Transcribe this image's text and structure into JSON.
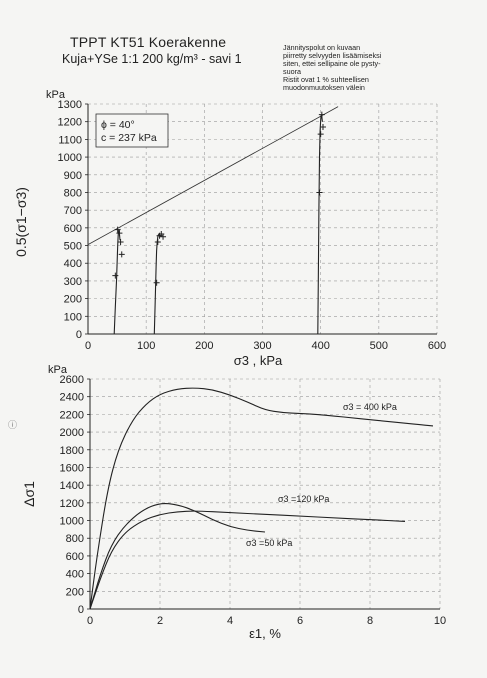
{
  "header": {
    "title": "TPPT KT51 Koerakenne",
    "subtitle": "Kuja+YSe 1:1 200 kg/m³ - savi 1",
    "note_lines": [
      "Jännityspolut on kuvaan",
      "piirretty selvyyden lisäämiseksi",
      "siten, ettei sellipaine ole pysty-",
      "suora",
      "Ristit ovat 1 % suhteellisen",
      "muodonmuutoksen välein"
    ]
  },
  "side_mark": "ⓘ",
  "chart_data": [
    {
      "type": "line",
      "unit_label": "kPa",
      "ylabel": "0.5(σ1−σ3)",
      "xlabel": "σ3 , kPa",
      "xlim": [
        0,
        600
      ],
      "ylim": [
        0,
        1300
      ],
      "xticks": [
        0,
        100,
        200,
        300,
        400,
        500,
        600
      ],
      "yticks": [
        0,
        100,
        200,
        300,
        400,
        500,
        600,
        700,
        800,
        900,
        1000,
        1100,
        1200,
        1300
      ],
      "grid": "dashed",
      "legend_box": [
        "ϕ = 40°",
        "c = 237 kPa"
      ],
      "failure_envelope": {
        "x": [
          0,
          430
        ],
        "y": [
          505,
          1285
        ]
      },
      "series": [
        {
          "x": [
            45,
            47,
            49,
            50,
            51,
            52,
            53,
            54,
            55
          ],
          "y": [
            0,
            150,
            300,
            400,
            500,
            560,
            590,
            570,
            530
          ]
        },
        {
          "x": [
            114,
            115,
            116,
            117,
            118,
            119,
            120,
            121,
            122,
            124,
            126
          ],
          "y": [
            0,
            120,
            250,
            380,
            470,
            520,
            548,
            560,
            560,
            558,
            552
          ]
        },
        {
          "x": [
            395,
            396,
            397,
            398,
            399,
            400,
            401,
            402,
            403
          ],
          "y": [
            0,
            300,
            700,
            1000,
            1150,
            1210,
            1240,
            1230,
            1200
          ]
        }
      ],
      "markers": [
        {
          "x": 47,
          "y": 330
        },
        {
          "x": 51,
          "y": 590
        },
        {
          "x": 54,
          "y": 570
        },
        {
          "x": 56,
          "y": 520
        },
        {
          "x": 58,
          "y": 450
        },
        {
          "x": 118,
          "y": 290
        },
        {
          "x": 120,
          "y": 520
        },
        {
          "x": 123,
          "y": 555
        },
        {
          "x": 126,
          "y": 565
        },
        {
          "x": 129,
          "y": 550
        },
        {
          "x": 398,
          "y": 800
        },
        {
          "x": 400,
          "y": 1130
        },
        {
          "x": 402,
          "y": 1240
        },
        {
          "x": 404,
          "y": 1170
        }
      ]
    },
    {
      "type": "line",
      "unit_label": "kPa",
      "ylabel": "Δσ1",
      "xlabel": "ε1, %",
      "xlim": [
        0,
        10
      ],
      "ylim": [
        0,
        2600
      ],
      "xticks": [
        0,
        2,
        4,
        6,
        8,
        10
      ],
      "yticks": [
        0,
        200,
        400,
        600,
        800,
        1000,
        1200,
        1400,
        1600,
        1800,
        2000,
        2200,
        2400,
        2600
      ],
      "grid": "dashed",
      "series": [
        {
          "name": "σ3 = 400 kPa",
          "x": [
            0,
            0.2,
            0.5,
            0.8,
            1.2,
            1.6,
            2.0,
            2.5,
            3.0,
            3.5,
            4.0,
            4.5,
            5.0,
            5.5,
            6.0,
            6.5,
            7.0,
            7.5,
            8.0,
            8.5,
            9.0,
            9.5,
            9.8
          ],
          "y": [
            0,
            600,
            1350,
            1800,
            2130,
            2320,
            2430,
            2490,
            2500,
            2480,
            2420,
            2340,
            2250,
            2220,
            2210,
            2200,
            2180,
            2160,
            2140,
            2120,
            2100,
            2080,
            2070
          ]
        },
        {
          "name": "σ3 =120 kPa",
          "x": [
            0,
            0.3,
            0.6,
            1.0,
            1.5,
            2.0,
            2.5,
            3.0,
            4.0,
            5.0,
            6.0,
            7.0,
            8.0,
            9.0
          ],
          "y": [
            0,
            350,
            650,
            870,
            1000,
            1070,
            1100,
            1110,
            1090,
            1070,
            1050,
            1030,
            1010,
            990
          ]
        },
        {
          "name": "σ3 =50 kPa",
          "x": [
            0,
            0.3,
            0.6,
            1.0,
            1.5,
            2.0,
            2.5,
            3.0,
            3.5,
            4.0,
            4.5,
            5.0
          ],
          "y": [
            0,
            400,
            720,
            950,
            1120,
            1200,
            1180,
            1110,
            1010,
            930,
            890,
            870
          ]
        }
      ]
    }
  ]
}
